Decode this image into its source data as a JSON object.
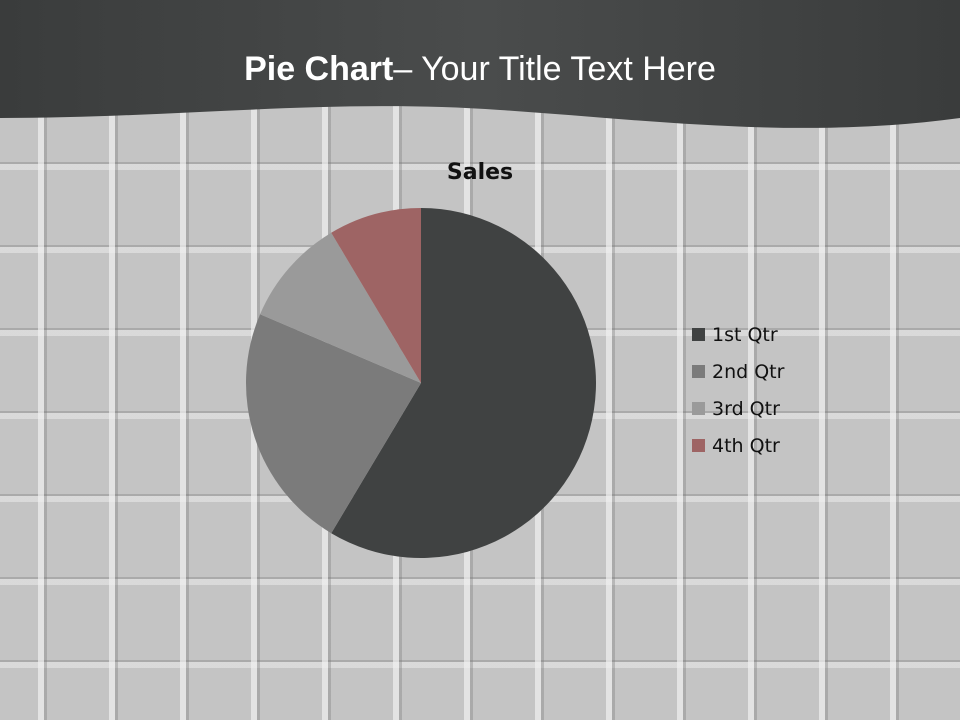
{
  "slide": {
    "title_bold": "Pie Chart",
    "title_rest": "– Your Title Text Here"
  },
  "chart_data": {
    "type": "pie",
    "title": "Sales",
    "categories": [
      "1st Qtr",
      "2nd Qtr",
      "3rd Qtr",
      "4th Qtr"
    ],
    "values": [
      8.2,
      3.2,
      1.4,
      1.2
    ],
    "colors": [
      "#404242",
      "#7b7b7b",
      "#9a9a9a",
      "#9e6464"
    ],
    "legend_position": "right"
  }
}
